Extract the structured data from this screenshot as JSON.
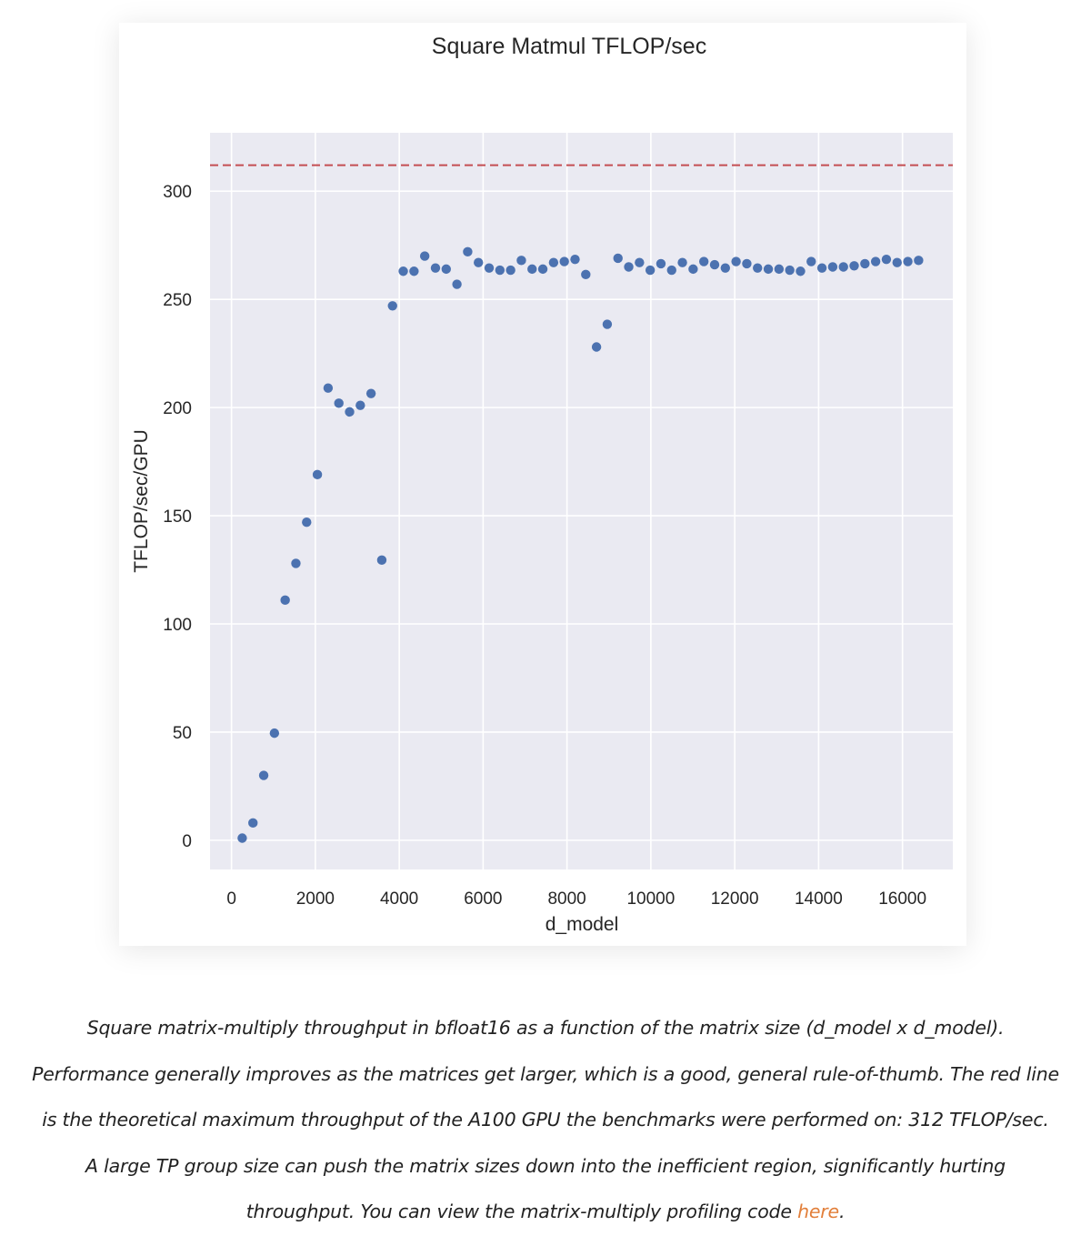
{
  "chart_data": {
    "type": "scatter",
    "title": "Square Matmul TFLOP/sec",
    "xlabel": "d_model",
    "ylabel": "TFLOP/sec/GPU",
    "xlim": [
      -512,
      17200
    ],
    "ylim": [
      -13.5,
      327
    ],
    "xticks": [
      0,
      2000,
      4000,
      6000,
      8000,
      10000,
      12000,
      14000,
      16000
    ],
    "yticks": [
      0,
      50,
      100,
      150,
      200,
      250,
      300
    ],
    "grid": true,
    "theoretical_max": 312,
    "theoretical_max_color": "#c44e52",
    "point_color": "#4c72b0",
    "background_color": "#eaeaf2",
    "points": [
      [
        256,
        1
      ],
      [
        512,
        8
      ],
      [
        768,
        30
      ],
      [
        1024,
        49.5
      ],
      [
        1280,
        111
      ],
      [
        1536,
        128
      ],
      [
        1792,
        147
      ],
      [
        2048,
        169
      ],
      [
        2304,
        209
      ],
      [
        2560,
        202
      ],
      [
        2816,
        198
      ],
      [
        3072,
        201
      ],
      [
        3328,
        206.5
      ],
      [
        3584,
        129.5
      ],
      [
        3840,
        247
      ],
      [
        4096,
        263
      ],
      [
        4352,
        263
      ],
      [
        4608,
        270
      ],
      [
        4864,
        264.5
      ],
      [
        5120,
        264
      ],
      [
        5376,
        257
      ],
      [
        5632,
        272
      ],
      [
        5888,
        267
      ],
      [
        6144,
        264.5
      ],
      [
        6400,
        263.5
      ],
      [
        6656,
        263.5
      ],
      [
        6912,
        268
      ],
      [
        7168,
        264
      ],
      [
        7424,
        264
      ],
      [
        7680,
        267
      ],
      [
        7936,
        267.5
      ],
      [
        8192,
        268.5
      ],
      [
        8448,
        261.5
      ],
      [
        8704,
        228
      ],
      [
        8960,
        238.5
      ],
      [
        9216,
        269
      ],
      [
        9472,
        265
      ],
      [
        9728,
        267
      ],
      [
        9984,
        263.5
      ],
      [
        10240,
        266.5
      ],
      [
        10496,
        263.5
      ],
      [
        10752,
        267
      ],
      [
        11008,
        264
      ],
      [
        11264,
        267.5
      ],
      [
        11520,
        266
      ],
      [
        11776,
        264.5
      ],
      [
        12032,
        267.5
      ],
      [
        12288,
        266.5
      ],
      [
        12544,
        264.5
      ],
      [
        12800,
        264
      ],
      [
        13056,
        264
      ],
      [
        13312,
        263.5
      ],
      [
        13568,
        263
      ],
      [
        13824,
        267.5
      ],
      [
        14080,
        264.5
      ],
      [
        14336,
        265
      ],
      [
        14592,
        265
      ],
      [
        14848,
        265.5
      ],
      [
        15104,
        266.5
      ],
      [
        15360,
        267.5
      ],
      [
        15616,
        268.5
      ],
      [
        15872,
        267
      ],
      [
        16128,
        267.5
      ],
      [
        16384,
        268
      ]
    ]
  },
  "caption": {
    "line1": "Square matrix-multiply throughput in bfloat16 as a function of the matrix size (d_model x d_model).",
    "line2": "Performance generally improves as the matrices get larger, which is a good, general rule-of-thumb. The red line",
    "line3": "is the theoretical maximum throughput of the A100 GPU the benchmarks were performed on: 312 TFLOP/sec.",
    "line4": "A large TP group size can push the matrix sizes down into the inefficient region, significantly hurting",
    "line5_prefix": "throughput. You can view the matrix-multiply profiling code ",
    "link_text": "here",
    "line5_suffix": "."
  }
}
